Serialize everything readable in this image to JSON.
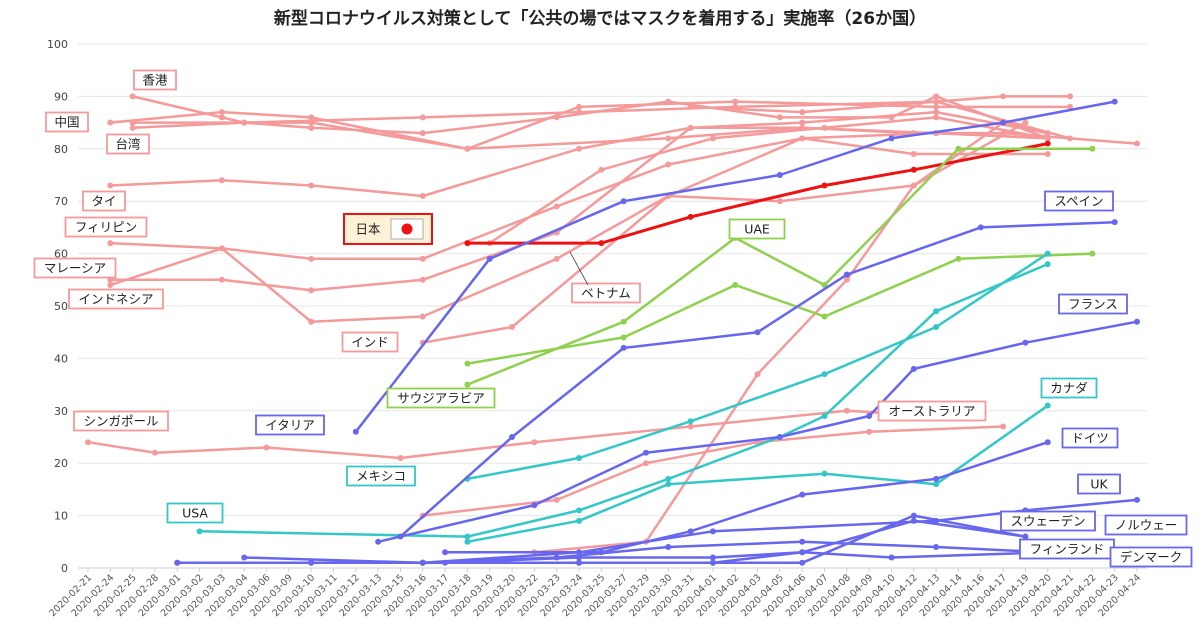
{
  "chart_data": {
    "type": "line",
    "title": "新型コロナウイルス対策として「公共の場ではマスクを着用する」実施率（26か国）",
    "ylim": [
      0,
      100
    ],
    "yticks": [
      0,
      10,
      20,
      30,
      40,
      50,
      60,
      70,
      80,
      90,
      100
    ],
    "grid": true,
    "categories": [
      "2020-02-21",
      "2020-02-24",
      "2020-02-25",
      "2020-02-28",
      "2020-03-01",
      "2020-03-02",
      "2020-03-03",
      "2020-03-04",
      "2020-03-06",
      "2020-03-09",
      "2020-03-10",
      "2020-03-11",
      "2020-03-12",
      "2020-03-13",
      "2020-03-15",
      "2020-03-16",
      "2020-03-17",
      "2020-03-18",
      "2020-03-19",
      "2020-03-20",
      "2020-03-22",
      "2020-03-23",
      "2020-03-24",
      "2020-03-25",
      "2020-03-27",
      "2020-03-29",
      "2020-03-30",
      "2020-03-31",
      "2020-04-01",
      "2020-04-02",
      "2020-04-03",
      "2020-04-05",
      "2020-04-06",
      "2020-04-07",
      "2020-04-08",
      "2020-04-09",
      "2020-04-10",
      "2020-04-12",
      "2020-04-13",
      "2020-04-14",
      "2020-04-16",
      "2020-04-17",
      "2020-04-19",
      "2020-04-20",
      "2020-04-21",
      "2020-04-22",
      "2020-04-23",
      "2020-04-24"
    ],
    "series": [
      {
        "name": "香港",
        "color": "#f49a9a",
        "width": 2.5,
        "points": [
          [
            2,
            90
          ],
          [
            6,
            86
          ],
          [
            7,
            85
          ],
          [
            10,
            84
          ],
          [
            15,
            83
          ],
          [
            21,
            86
          ],
          [
            26,
            89
          ],
          [
            31,
            86
          ],
          [
            36,
            86
          ],
          [
            38,
            90
          ],
          [
            43,
            82
          ]
        ]
      },
      {
        "name": "中国",
        "color": "#f49a9a",
        "width": 2.5,
        "points": [
          [
            1,
            85
          ],
          [
            6,
            87
          ],
          [
            10,
            86
          ],
          [
            17,
            80
          ],
          [
            22,
            88
          ],
          [
            29,
            89
          ],
          [
            38,
            88
          ],
          [
            44,
            88
          ]
        ]
      },
      {
        "name": "台湾",
        "color": "#f49a9a",
        "width": 2.5,
        "points": [
          [
            2,
            84
          ],
          [
            7,
            85
          ],
          [
            15,
            86
          ],
          [
            22,
            87
          ],
          [
            29,
            88
          ],
          [
            38,
            89
          ],
          [
            44,
            82
          ]
        ]
      },
      {
        "name": "",
        "color": "#f49a9a",
        "width": 2.5,
        "points": [
          [
            2,
            85
          ],
          [
            10,
            85
          ],
          [
            17,
            80
          ],
          [
            26,
            82
          ],
          [
            32,
            84
          ],
          [
            37,
            83
          ],
          [
            41,
            83
          ],
          [
            47,
            81
          ]
        ]
      },
      {
        "name": "",
        "color": "#f49a9a",
        "width": 2.5,
        "points": [
          [
            27,
            88
          ],
          [
            32,
            87
          ],
          [
            38,
            89
          ],
          [
            41,
            90
          ],
          [
            44,
            90
          ]
        ]
      },
      {
        "name": "タイ",
        "color": "#f49a9a",
        "width": 2.5,
        "points": [
          [
            1,
            73
          ],
          [
            6,
            74
          ],
          [
            10,
            73
          ],
          [
            15,
            71
          ],
          [
            22,
            80
          ],
          [
            27,
            84
          ],
          [
            32,
            85
          ],
          [
            38,
            87
          ],
          [
            43,
            83
          ]
        ]
      },
      {
        "name": "",
        "color": "#f49a9a",
        "width": 2.5,
        "points": [
          [
            18,
            62
          ],
          [
            23,
            76
          ],
          [
            28,
            82
          ],
          [
            33,
            84
          ],
          [
            38,
            86
          ],
          [
            43,
            82
          ]
        ]
      },
      {
        "name": "フィリピン",
        "color": "#f49a9a",
        "width": 2.5,
        "points": [
          [
            1,
            62
          ],
          [
            6,
            61
          ],
          [
            10,
            59
          ],
          [
            15,
            59
          ],
          [
            21,
            69
          ],
          [
            26,
            77
          ],
          [
            32,
            82
          ],
          [
            38,
            83
          ],
          [
            43,
            82
          ]
        ]
      },
      {
        "name": "マレーシア",
        "color": "#f49a9a",
        "width": 2.5,
        "points": [
          [
            1,
            54
          ],
          [
            6,
            61
          ],
          [
            10,
            47
          ],
          [
            15,
            48
          ],
          [
            21,
            59
          ],
          [
            26,
            71
          ],
          [
            31,
            70
          ],
          [
            37,
            73
          ],
          [
            42,
            85
          ]
        ]
      },
      {
        "name": "インドネシア",
        "color": "#f49a9a",
        "width": 2.5,
        "points": [
          [
            1,
            55
          ],
          [
            6,
            55
          ],
          [
            10,
            53
          ],
          [
            15,
            55
          ],
          [
            21,
            64
          ],
          [
            27,
            84
          ],
          [
            32,
            84
          ],
          [
            38,
            83
          ],
          [
            43,
            82
          ]
        ]
      },
      {
        "name": "インド",
        "color": "#f49a9a",
        "width": 2.5,
        "points": [
          [
            15,
            43
          ],
          [
            19,
            46
          ],
          [
            26,
            71
          ],
          [
            32,
            82
          ],
          [
            37,
            79
          ],
          [
            43,
            79
          ]
        ]
      },
      {
        "name": "ベトナム",
        "color": "#f49a9a",
        "width": 2.5,
        "points": [
          [
            15,
            10
          ],
          [
            21,
            13
          ],
          [
            25,
            20
          ],
          [
            30,
            24
          ],
          [
            35,
            26
          ],
          [
            41,
            27
          ]
        ]
      },
      {
        "name": "オーストラリア",
        "color": "#f49a9a",
        "width": 2.5,
        "points": [
          [
            20,
            3
          ],
          [
            25,
            5
          ],
          [
            30,
            37
          ],
          [
            34,
            55
          ],
          [
            37,
            73
          ],
          [
            41,
            85
          ],
          [
            43,
            83
          ]
        ]
      },
      {
        "name": "シンガポール",
        "color": "#f49a9a",
        "width": 2.5,
        "points": [
          [
            0,
            24
          ],
          [
            3,
            22
          ],
          [
            8,
            23
          ],
          [
            14,
            21
          ],
          [
            20,
            24
          ],
          [
            27,
            27
          ],
          [
            34,
            30
          ],
          [
            38,
            29
          ]
        ]
      },
      {
        "name": "日本",
        "color": "#ee1111",
        "width": 3,
        "points": [
          [
            17,
            62
          ],
          [
            23,
            62
          ],
          [
            27,
            67
          ],
          [
            33,
            73
          ],
          [
            37,
            76
          ],
          [
            43,
            81
          ]
        ]
      },
      {
        "name": "UAE",
        "color": "#8fd14f",
        "width": 2.5,
        "points": [
          [
            17,
            35
          ],
          [
            24,
            47
          ],
          [
            29,
            63
          ],
          [
            33,
            54
          ],
          [
            39,
            80
          ],
          [
            45,
            80
          ]
        ]
      },
      {
        "name": "サウジアラビア",
        "color": "#8fd14f",
        "width": 2.5,
        "points": [
          [
            17,
            39
          ],
          [
            24,
            44
          ],
          [
            29,
            54
          ],
          [
            33,
            48
          ],
          [
            39,
            59
          ],
          [
            45,
            60
          ]
        ]
      },
      {
        "name": "メキシコ",
        "color": "#33c7c7",
        "width": 2.5,
        "points": [
          [
            17,
            17
          ],
          [
            22,
            21
          ],
          [
            27,
            28
          ],
          [
            33,
            37
          ],
          [
            38,
            46
          ],
          [
            43,
            60
          ]
        ]
      },
      {
        "name": "カナダ",
        "color": "#33c7c7",
        "width": 2.5,
        "points": [
          [
            17,
            5
          ],
          [
            22,
            9
          ],
          [
            26,
            16
          ],
          [
            33,
            18
          ],
          [
            38,
            16
          ],
          [
            43,
            31
          ]
        ]
      },
      {
        "name": "USA",
        "color": "#33c7c7",
        "width": 2.5,
        "points": [
          [
            5,
            7
          ],
          [
            17,
            6
          ],
          [
            22,
            11
          ],
          [
            26,
            17
          ],
          [
            31,
            25
          ],
          [
            33,
            29
          ],
          [
            38,
            49
          ],
          [
            43,
            58
          ]
        ]
      },
      {
        "name": "イタリア",
        "color": "#6666ee",
        "width": 2.5,
        "points": [
          [
            12,
            26
          ],
          [
            18,
            59
          ],
          [
            24,
            70
          ],
          [
            31,
            75
          ],
          [
            36,
            82
          ],
          [
            41,
            85
          ],
          [
            46,
            89
          ]
        ]
      },
      {
        "name": "スペイン",
        "color": "#6666ee",
        "width": 2.5,
        "points": [
          [
            14,
            6
          ],
          [
            19,
            25
          ],
          [
            24,
            42
          ],
          [
            30,
            45
          ],
          [
            34,
            56
          ],
          [
            40,
            65
          ],
          [
            46,
            66
          ]
        ]
      },
      {
        "name": "フランス",
        "color": "#6666ee",
        "width": 2.5,
        "points": [
          [
            13,
            5
          ],
          [
            20,
            12
          ],
          [
            25,
            22
          ],
          [
            31,
            25
          ],
          [
            35,
            29
          ],
          [
            37,
            38
          ],
          [
            42,
            43
          ],
          [
            47,
            47
          ]
        ]
      },
      {
        "name": "ドイツ",
        "color": "#6666ee",
        "width": 2.5,
        "points": [
          [
            16,
            3
          ],
          [
            23,
            3
          ],
          [
            27,
            7
          ],
          [
            32,
            14
          ],
          [
            38,
            17
          ],
          [
            43,
            24
          ]
        ]
      },
      {
        "name": "UK",
        "color": "#6666ee",
        "width": 2.5,
        "points": [
          [
            15,
            1
          ],
          [
            22,
            3
          ],
          [
            28,
            7
          ],
          [
            38,
            9
          ],
          [
            42,
            11
          ],
          [
            47,
            13
          ]
        ]
      },
      {
        "name": "スウェーデン",
        "color": "#6666ee",
        "width": 2.5,
        "points": [
          [
            15,
            1
          ],
          [
            22,
            1
          ],
          [
            28,
            1
          ],
          [
            32,
            1
          ],
          [
            37,
            10
          ],
          [
            42,
            6
          ]
        ]
      },
      {
        "name": "ノルウェー",
        "color": "#6666ee",
        "width": 2.5,
        "points": [
          [
            7,
            2
          ],
          [
            15,
            1
          ],
          [
            22,
            1
          ],
          [
            28,
            1
          ],
          [
            32,
            3
          ],
          [
            37,
            9
          ],
          [
            42,
            6
          ]
        ]
      },
      {
        "name": "フィンランド",
        "color": "#6666ee",
        "width": 2.5,
        "points": [
          [
            4,
            1
          ],
          [
            10,
            1
          ],
          [
            16,
            1
          ],
          [
            22,
            2
          ],
          [
            28,
            2
          ],
          [
            32,
            3
          ],
          [
            36,
            2
          ],
          [
            43,
            3
          ]
        ]
      },
      {
        "name": "デンマーク",
        "color": "#6666ee",
        "width": 2.5,
        "points": [
          [
            4,
            1
          ],
          [
            10,
            1
          ],
          [
            15,
            1
          ],
          [
            21,
            2
          ],
          [
            26,
            4
          ],
          [
            32,
            5
          ],
          [
            38,
            4
          ],
          [
            43,
            3
          ]
        ]
      }
    ],
    "labels": [
      {
        "text": "香港",
        "series": "香港",
        "color": "#f49a9a"
      },
      {
        "text": "中国",
        "series": "中国",
        "color": "#f49a9a"
      },
      {
        "text": "台湾",
        "series": "台湾",
        "color": "#f49a9a"
      },
      {
        "text": "タイ",
        "series": "タイ",
        "color": "#f49a9a"
      },
      {
        "text": "フィリピン",
        "series": "フィリピン",
        "color": "#f49a9a"
      },
      {
        "text": "マレーシア",
        "series": "マレーシア",
        "color": "#f49a9a"
      },
      {
        "text": "インドネシア",
        "series": "インドネシア",
        "color": "#f49a9a"
      },
      {
        "text": "インド",
        "series": "インド",
        "color": "#f49a9a"
      },
      {
        "text": "ベトナム",
        "series": "ベトナム",
        "color": "#f49a9a"
      },
      {
        "text": "シンガポール",
        "series": "シンガポール",
        "color": "#f49a9a"
      },
      {
        "text": "オーストラリア",
        "series": "オーストラリア",
        "color": "#f49a9a"
      },
      {
        "text": "日本",
        "series": "日本",
        "color": "#ee1111"
      },
      {
        "text": "UAE",
        "series": "UAE",
        "color": "#8fd14f"
      },
      {
        "text": "サウジアラビア",
        "series": "サウジアラビア",
        "color": "#8fd14f"
      },
      {
        "text": "メキシコ",
        "series": "メキシコ",
        "color": "#33c7c7"
      },
      {
        "text": "カナダ",
        "series": "カナダ",
        "color": "#33c7c7"
      },
      {
        "text": "USA",
        "series": "USA",
        "color": "#33c7c7"
      },
      {
        "text": "イタリア",
        "series": "イタリア",
        "color": "#6666ee"
      },
      {
        "text": "スペイン",
        "series": "スペイン",
        "color": "#6666ee"
      },
      {
        "text": "フランス",
        "series": "フランス",
        "color": "#6666ee"
      },
      {
        "text": "ドイツ",
        "series": "ドイツ",
        "color": "#6666ee"
      },
      {
        "text": "UK",
        "series": "UK",
        "color": "#6666ee"
      },
      {
        "text": "スウェーデン",
        "series": "スウェーデン",
        "color": "#6666ee"
      },
      {
        "text": "ノルウェー",
        "series": "ノルウェー",
        "color": "#6666ee"
      },
      {
        "text": "フィンランド",
        "series": "フィンランド",
        "color": "#6666ee"
      },
      {
        "text": "デンマーク",
        "series": "デンマーク",
        "color": "#6666ee"
      }
    ]
  }
}
